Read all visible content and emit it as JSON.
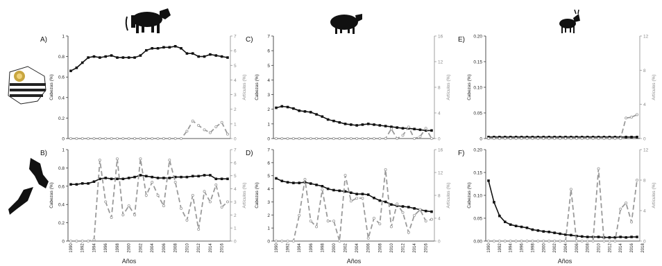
{
  "labels": {
    "x_axis": "Años",
    "y_left": "Cabezas (%)",
    "y_right": "Artículos (%)"
  },
  "colors": {
    "heads_line": "#111111",
    "articles_line": "#9a9a9a",
    "axis": "#222222"
  },
  "animal_icons": [
    "cow-icon",
    "sheep-icon",
    "goat-icon"
  ],
  "country_icons": [
    "uruguay-map-flag-icon",
    "new-zealand-map-flag-icon"
  ],
  "chart_data": [
    {
      "id": "A",
      "panel_label": "A)",
      "type": "line",
      "x": [
        1990,
        1991,
        1992,
        1993,
        1994,
        1995,
        1996,
        1997,
        1998,
        1999,
        2000,
        2001,
        2002,
        2003,
        2004,
        2005,
        2006,
        2007,
        2008,
        2009,
        2010,
        2011,
        2012,
        2013,
        2014,
        2015,
        2016,
        2017
      ],
      "x_ticks": [],
      "ylim_left": [
        0,
        1
      ],
      "yticks_left": [
        "0",
        "0.2",
        "0.4",
        "0.6",
        "0.8",
        "1"
      ],
      "ylim_right": [
        0,
        7
      ],
      "yticks_right": [
        "0",
        "1",
        "2",
        "3",
        "4",
        "5",
        "6",
        "7"
      ],
      "series": [
        {
          "axis": "left",
          "values": [
            0.66,
            0.69,
            0.74,
            0.79,
            0.8,
            0.79,
            0.8,
            0.81,
            0.79,
            0.79,
            0.79,
            0.79,
            0.81,
            0.86,
            0.88,
            0.88,
            0.89,
            0.89,
            0.9,
            0.88,
            0.83,
            0.83,
            0.8,
            0.8,
            0.82,
            0.81,
            0.8,
            0.79
          ]
        },
        {
          "axis": "right",
          "values": [
            0,
            0,
            0,
            0,
            0,
            0,
            0,
            0,
            0,
            0,
            0,
            0,
            0,
            0,
            0,
            0,
            0,
            0,
            0,
            0,
            0.5,
            1.2,
            0.9,
            0.6,
            0.4,
            0.8,
            1.1,
            0.3
          ]
        }
      ]
    },
    {
      "id": "C",
      "panel_label": "C)",
      "type": "line",
      "x": [
        1990,
        1991,
        1992,
        1993,
        1994,
        1995,
        1996,
        1997,
        1998,
        1999,
        2000,
        2001,
        2002,
        2003,
        2004,
        2005,
        2006,
        2007,
        2008,
        2009,
        2010,
        2011,
        2012,
        2013,
        2014,
        2015,
        2016,
        2017
      ],
      "x_ticks": [],
      "ylim_left": [
        0,
        7
      ],
      "yticks_left": [
        "0",
        "1",
        "2",
        "3",
        "4",
        "5",
        "6",
        "7"
      ],
      "ylim_right": [
        0,
        16
      ],
      "yticks_right": [
        "0",
        "4",
        "8",
        "12",
        "16"
      ],
      "series": [
        {
          "axis": "left",
          "values": [
            2.1,
            2.2,
            2.15,
            2.05,
            1.9,
            1.85,
            1.8,
            1.65,
            1.5,
            1.3,
            1.2,
            1.1,
            1.0,
            0.95,
            0.9,
            0.95,
            1.0,
            0.95,
            0.9,
            0.85,
            0.8,
            0.75,
            0.7,
            0.7,
            0.65,
            0.6,
            0.55,
            0.55
          ]
        },
        {
          "axis": "right",
          "values": [
            0,
            0,
            0,
            0,
            0,
            0,
            0,
            0,
            0,
            0,
            0,
            0,
            0,
            0,
            0,
            0,
            0,
            0,
            0,
            0,
            1.5,
            0,
            0.5,
            1.8,
            0,
            0.3,
            1.6,
            0
          ]
        }
      ]
    },
    {
      "id": "E",
      "panel_label": "E)",
      "type": "line",
      "x": [
        1990,
        1991,
        1992,
        1993,
        1994,
        1995,
        1996,
        1997,
        1998,
        1999,
        2000,
        2001,
        2002,
        2003,
        2004,
        2005,
        2006,
        2007,
        2008,
        2009,
        2010,
        2011,
        2012,
        2013,
        2014,
        2015,
        2016,
        2017
      ],
      "x_ticks": [],
      "ylim_left": [
        0,
        0.2
      ],
      "yticks_left": [
        "0",
        "0.05",
        "0.10",
        "0.15",
        "0.20"
      ],
      "ylim_right": [
        0,
        12
      ],
      "yticks_right": [
        "0",
        "4",
        "8",
        "12"
      ],
      "series": [
        {
          "axis": "left",
          "values": [
            0.003,
            0.003,
            0.003,
            0.003,
            0.003,
            0.003,
            0.003,
            0.003,
            0.003,
            0.003,
            0.003,
            0.003,
            0.003,
            0.003,
            0.003,
            0.003,
            0.003,
            0.003,
            0.003,
            0.003,
            0.003,
            0.003,
            0.003,
            0.003,
            0.003,
            0.003,
            0.003,
            0.003
          ]
        },
        {
          "axis": "right",
          "values": [
            0,
            0,
            0,
            0,
            0,
            0,
            0,
            0,
            0,
            0,
            0,
            0,
            0,
            0,
            0,
            0,
            0,
            0,
            0,
            0,
            0,
            0,
            0,
            0,
            0,
            2.4,
            2.5,
            2.8
          ]
        }
      ]
    },
    {
      "id": "B",
      "panel_label": "B)",
      "type": "line",
      "x": [
        1990,
        1991,
        1992,
        1993,
        1994,
        1995,
        1996,
        1997,
        1998,
        1999,
        2000,
        2001,
        2002,
        2003,
        2004,
        2005,
        2006,
        2007,
        2008,
        2009,
        2010,
        2011,
        2012,
        2013,
        2014,
        2015,
        2016,
        2017
      ],
      "x_ticks": [
        "1990",
        "1992",
        "1994",
        "1996",
        "1998",
        "2000",
        "2002",
        "2004",
        "2006",
        "2008",
        "2010",
        "2012",
        "2014",
        "2016"
      ],
      "ylim_left": [
        0,
        1
      ],
      "yticks_left": [
        "0",
        "0.2",
        "0.4",
        "0.6",
        "0.8",
        "1"
      ],
      "ylim_right": [
        0,
        7
      ],
      "yticks_right": [
        "0",
        "1",
        "2",
        "3",
        "4",
        "5",
        "6",
        "7"
      ],
      "series": [
        {
          "axis": "left",
          "values": [
            0.62,
            0.62,
            0.63,
            0.63,
            0.65,
            0.68,
            0.69,
            0.68,
            0.68,
            0.68,
            0.69,
            0.7,
            0.72,
            0.71,
            0.7,
            0.69,
            0.69,
            0.69,
            0.7,
            0.7,
            0.7,
            0.71,
            0.71,
            0.72,
            0.72,
            0.68,
            0.68,
            0.68
          ]
        },
        {
          "axis": "right",
          "values": [
            0,
            0,
            0,
            0,
            0.1,
            6.2,
            3.0,
            1.8,
            6.3,
            2.0,
            2.7,
            2.0,
            6.3,
            3.5,
            4.5,
            3.5,
            2.7,
            6.2,
            4.5,
            2.5,
            1.6,
            3.5,
            0.9,
            3.8,
            3.0,
            4.3,
            2.6,
            3.0
          ]
        }
      ]
    },
    {
      "id": "D",
      "panel_label": "D)",
      "type": "line",
      "x": [
        1990,
        1991,
        1992,
        1993,
        1994,
        1995,
        1996,
        1997,
        1998,
        1999,
        2000,
        2001,
        2002,
        2003,
        2004,
        2005,
        2006,
        2007,
        2008,
        2009,
        2010,
        2011,
        2012,
        2013,
        2014,
        2015,
        2016,
        2017
      ],
      "x_ticks": [
        "1990",
        "1992",
        "1994",
        "1996",
        "1998",
        "2000",
        "2002",
        "2004",
        "2006",
        "2008",
        "2010",
        "2012",
        "2014",
        "2016"
      ],
      "ylim_left": [
        0,
        7
      ],
      "yticks_left": [
        "0",
        "1",
        "2",
        "3",
        "4",
        "5",
        "6",
        "7"
      ],
      "ylim_right": [
        0,
        16
      ],
      "yticks_right": [
        "0",
        "4",
        "8",
        "12",
        "16"
      ],
      "series": [
        {
          "axis": "left",
          "values": [
            4.8,
            4.6,
            4.5,
            4.45,
            4.45,
            4.5,
            4.4,
            4.3,
            4.2,
            4.0,
            3.9,
            3.85,
            3.8,
            3.7,
            3.6,
            3.6,
            3.55,
            3.3,
            3.1,
            3.0,
            2.8,
            2.7,
            2.65,
            2.6,
            2.5,
            2.4,
            2.3,
            2.25
          ]
        },
        {
          "axis": "right",
          "values": [
            0,
            0,
            0,
            0,
            4.5,
            10.8,
            3.5,
            2.5,
            9.0,
            3.5,
            3.5,
            0,
            11.5,
            7.0,
            7.5,
            7.5,
            0.5,
            4.0,
            3.0,
            12.5,
            2.5,
            6.5,
            5.0,
            1.5,
            4.5,
            5.5,
            3.5,
            3.8
          ]
        }
      ]
    },
    {
      "id": "F",
      "panel_label": "F)",
      "type": "line",
      "x": [
        1990,
        1991,
        1992,
        1993,
        1994,
        1995,
        1996,
        1997,
        1998,
        1999,
        2000,
        2001,
        2002,
        2003,
        2004,
        2005,
        2006,
        2007,
        2008,
        2009,
        2010,
        2011,
        2012,
        2013,
        2014,
        2015,
        2016,
        2017
      ],
      "x_ticks": [
        "1990",
        "1992",
        "1994",
        "1996",
        "1998",
        "2000",
        "2002",
        "2004",
        "2006",
        "2008",
        "2010",
        "2012",
        "2014",
        "2016",
        "2018"
      ],
      "ylim_left": [
        0,
        0.2
      ],
      "yticks_left": [
        "0.00",
        "0.05",
        "0.10",
        "0.15",
        "0.20"
      ],
      "ylim_right": [
        0,
        12
      ],
      "yticks_right": [
        "0",
        "4",
        "8",
        "12"
      ],
      "series": [
        {
          "axis": "left",
          "values": [
            0.132,
            0.085,
            0.055,
            0.042,
            0.036,
            0.033,
            0.031,
            0.029,
            0.025,
            0.023,
            0.021,
            0.02,
            0.018,
            0.016,
            0.014,
            0.013,
            0.011,
            0.01,
            0.009,
            0.009,
            0.009,
            0.008,
            0.008,
            0.008,
            0.009,
            0.008,
            0.009,
            0.009
          ]
        },
        {
          "axis": "right",
          "values": [
            0,
            0,
            0,
            0,
            0,
            0,
            0,
            0,
            0,
            0,
            0,
            0,
            0,
            0,
            0,
            6.8,
            0,
            0,
            0,
            0,
            9.5,
            0,
            0,
            0,
            4.2,
            5.0,
            2.5,
            8.0
          ]
        }
      ]
    }
  ]
}
